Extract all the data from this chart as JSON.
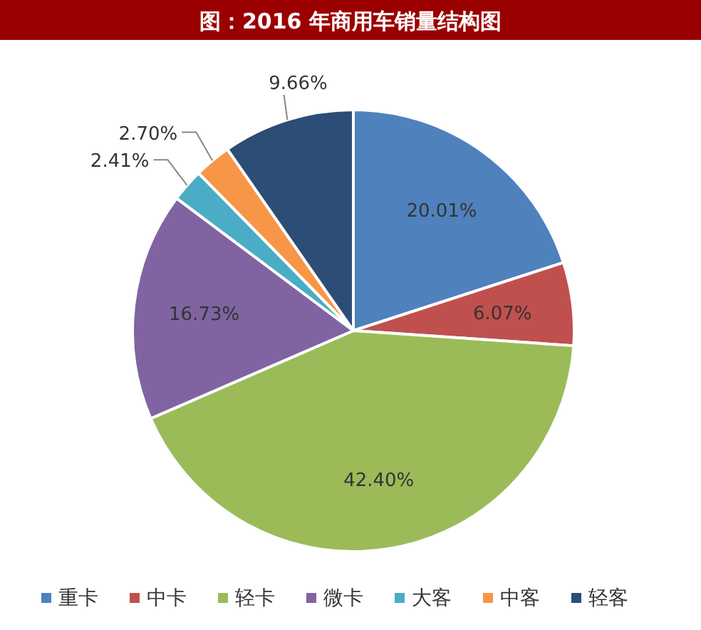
{
  "chart_data": {
    "type": "pie",
    "title": "图：2016 年商用车销量结构图",
    "categories": [
      "重卡",
      "中卡",
      "轻卡",
      "微卡",
      "大客",
      "中客",
      "轻客"
    ],
    "values": [
      20.01,
      6.07,
      42.4,
      16.73,
      2.41,
      2.7,
      9.66
    ],
    "colors": [
      "#4f81bd",
      "#c0504d",
      "#9bbb59",
      "#8064a2",
      "#4bacc6",
      "#f79646",
      "#2c4d75"
    ],
    "value_labels": [
      "20.01%",
      "6.07%",
      "42.40%",
      "16.73%",
      "2.41%",
      "2.70%",
      "9.66%"
    ],
    "legend": "bottom"
  }
}
